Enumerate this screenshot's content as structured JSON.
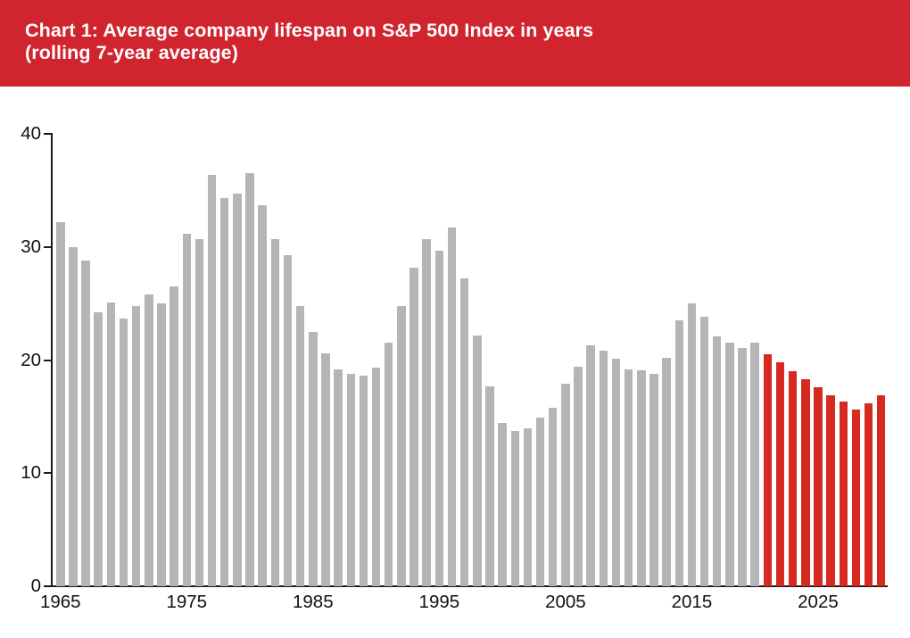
{
  "header": {
    "title_line1": "Chart 1: Average company lifespan on S&P 500 Index in years",
    "title_line2": "(rolling 7-year average)"
  },
  "colors": {
    "header_bg": "#d0252e",
    "title_text": "#ffffff",
    "bar_historical": "#b5b5b5",
    "bar_forecast": "#d62a20",
    "axis": "#1a1a1a"
  },
  "chart_data": {
    "type": "bar",
    "title": "Chart 1: Average company lifespan on S&P 500 Index in years (rolling 7-year average)",
    "xlabel": "",
    "ylabel": "",
    "ylim": [
      0,
      40
    ],
    "yticks": [
      0,
      10,
      20,
      30,
      40
    ],
    "xticks": [
      1965,
      1975,
      1985,
      1995,
      2005,
      2015,
      2025
    ],
    "grid": false,
    "legend": "none",
    "forecast_start_year": 2021,
    "categories": [
      1965,
      1966,
      1967,
      1968,
      1969,
      1970,
      1971,
      1972,
      1973,
      1974,
      1975,
      1976,
      1977,
      1978,
      1979,
      1980,
      1981,
      1982,
      1983,
      1984,
      1985,
      1986,
      1987,
      1988,
      1989,
      1990,
      1991,
      1992,
      1993,
      1994,
      1995,
      1996,
      1997,
      1998,
      1999,
      2000,
      2001,
      2002,
      2003,
      2004,
      2005,
      2006,
      2007,
      2008,
      2009,
      2010,
      2011,
      2012,
      2013,
      2014,
      2015,
      2016,
      2017,
      2018,
      2019,
      2020,
      2021,
      2022,
      2023,
      2024,
      2025,
      2026,
      2027,
      2028,
      2029,
      2030
    ],
    "values": [
      32.2,
      30.0,
      28.8,
      24.2,
      25.1,
      23.7,
      24.8,
      25.8,
      25.0,
      26.5,
      31.2,
      30.7,
      36.4,
      34.3,
      34.7,
      36.5,
      33.7,
      30.7,
      29.3,
      24.8,
      22.5,
      20.6,
      19.2,
      18.8,
      18.6,
      19.3,
      21.5,
      24.8,
      28.2,
      30.7,
      29.7,
      31.7,
      27.2,
      22.2,
      17.7,
      14.4,
      13.7,
      14.0,
      14.9,
      15.8,
      17.9,
      19.4,
      21.3,
      20.8,
      20.1,
      19.2,
      19.1,
      18.8,
      20.2,
      23.5,
      25.0,
      23.8,
      22.1,
      21.5,
      21.1,
      21.5,
      20.5,
      19.8,
      19.0,
      18.3,
      17.6,
      16.9,
      16.3,
      15.6,
      16.2,
      16.9
    ]
  }
}
